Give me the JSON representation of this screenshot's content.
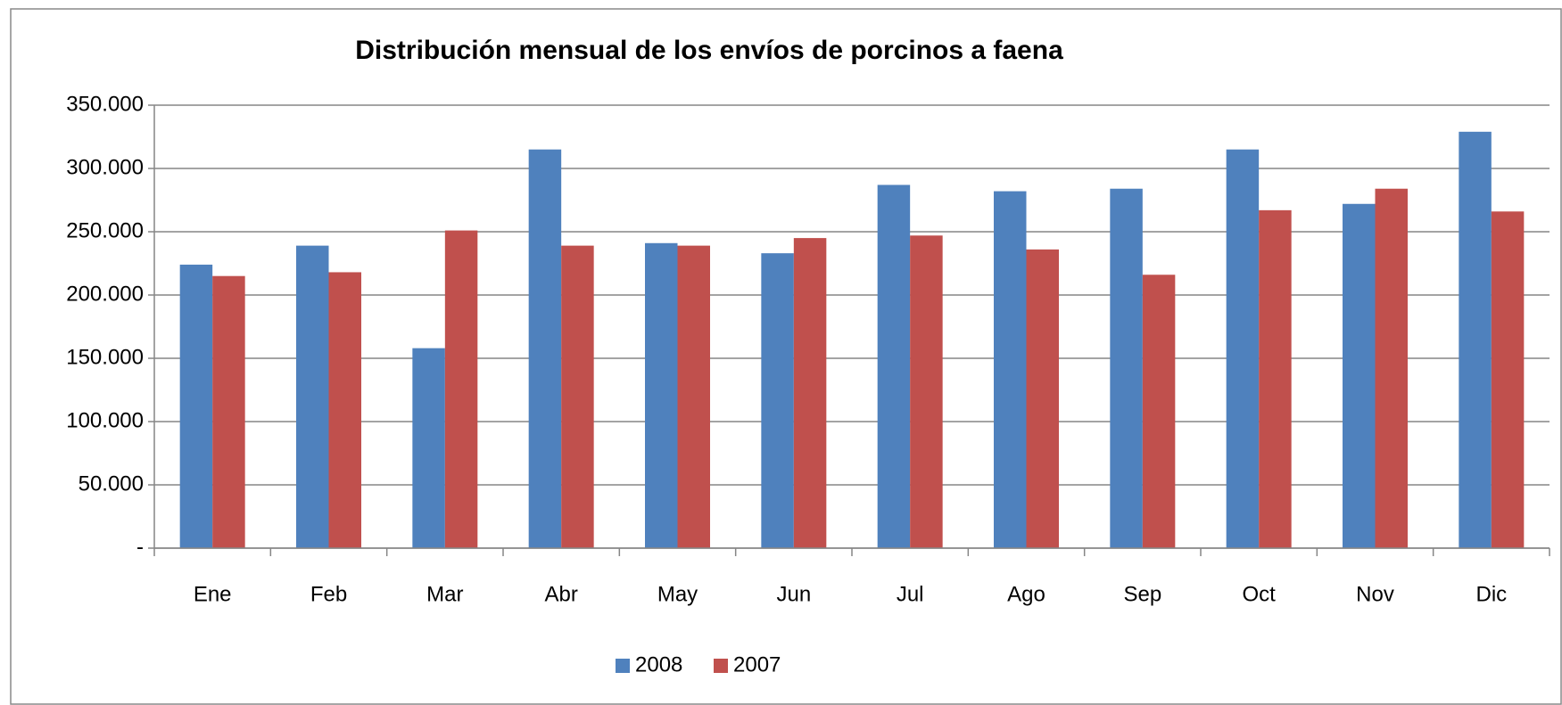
{
  "chart_data": {
    "type": "bar",
    "title": "Distribución mensual de los envíos de porcinos a faena",
    "categories": [
      "Ene",
      "Feb",
      "Mar",
      "Abr",
      "May",
      "Jun",
      "Jul",
      "Ago",
      "Sep",
      "Oct",
      "Nov",
      "Dic"
    ],
    "series": [
      {
        "name": "2008",
        "color": "#4f81bd",
        "values": [
          224000,
          239000,
          158000,
          315000,
          241000,
          233000,
          287000,
          282000,
          284000,
          315000,
          272000,
          329000
        ]
      },
      {
        "name": "2007",
        "color": "#c0504d",
        "values": [
          215000,
          218000,
          251000,
          239000,
          239000,
          245000,
          247000,
          236000,
          216000,
          267000,
          284000,
          266000
        ]
      }
    ],
    "ylim": [
      0,
      350000
    ],
    "yticks": [
      {
        "value": 0,
        "label": "-"
      },
      {
        "value": 50000,
        "label": "50.000"
      },
      {
        "value": 100000,
        "label": "100.000"
      },
      {
        "value": 150000,
        "label": "150.000"
      },
      {
        "value": 200000,
        "label": "200.000"
      },
      {
        "value": 250000,
        "label": "250.000"
      },
      {
        "value": 300000,
        "label": "300.000"
      },
      {
        "value": 350000,
        "label": "350.000"
      }
    ],
    "grid": true,
    "legend": "bottom"
  }
}
